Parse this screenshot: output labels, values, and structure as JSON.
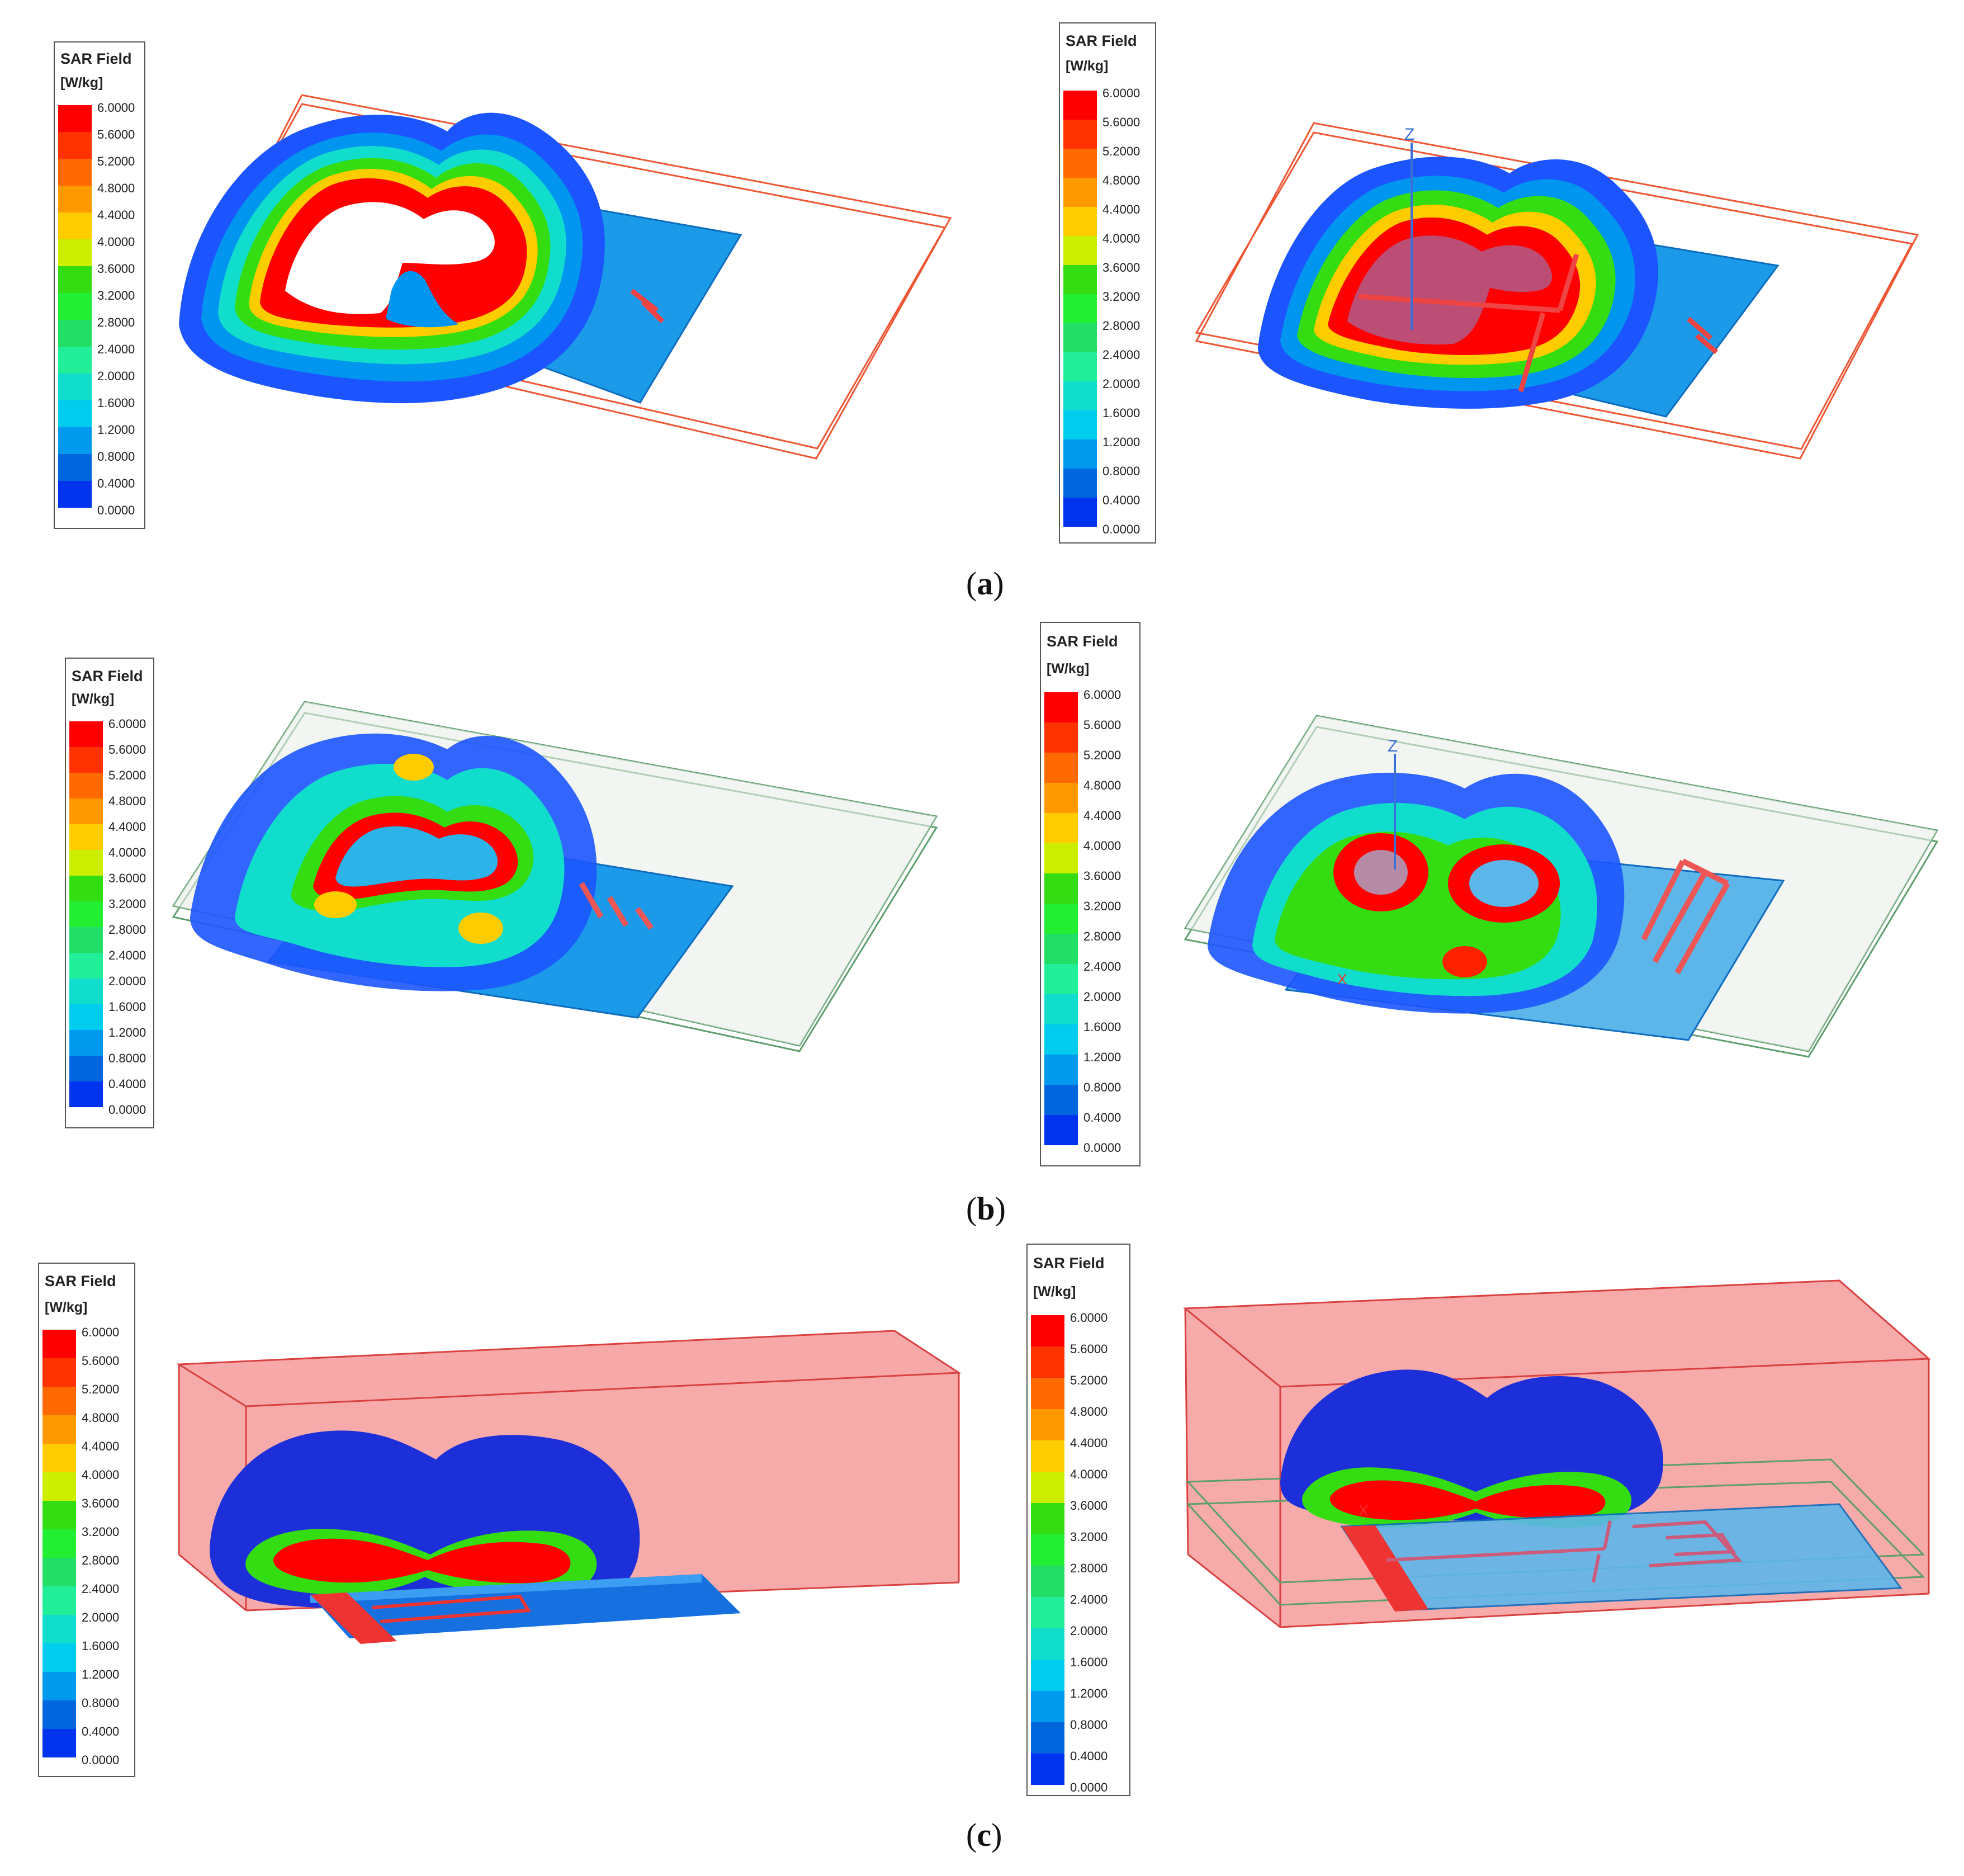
{
  "legend": {
    "title": "SAR Field",
    "unit": "[W/kg]",
    "ticks": [
      "6.0000",
      "5.6000",
      "5.2000",
      "4.8000",
      "4.4000",
      "4.0000",
      "3.6000",
      "3.2000",
      "2.8000",
      "2.4000",
      "2.0000",
      "1.6000",
      "1.2000",
      "0.8000",
      "0.4000",
      "0.0000"
    ],
    "colors": [
      "#ff0000",
      "#ff3300",
      "#ff6a00",
      "#ff9900",
      "#ffcc00",
      "#ccee00",
      "#33dd11",
      "#22ee33",
      "#22dd66",
      "#22ee99",
      "#11ddcc",
      "#00ccee",
      "#0099ee",
      "#0066dd",
      "#0033ee",
      "#0000ff"
    ]
  },
  "panels": {
    "a": {
      "caption_open": "(",
      "caption_letter": "a",
      "caption_close": ")"
    },
    "b": {
      "caption_open": "(",
      "caption_letter": "b",
      "caption_close": ")"
    },
    "c": {
      "caption_open": "(",
      "caption_letter": "c",
      "caption_close": ")"
    }
  },
  "axis_labels": {
    "z": "Z",
    "x": "X"
  },
  "colors": {
    "box_orange": "#ee5533",
    "box_green": "#5d9e6d",
    "substrate_blue": "#1a9ae8",
    "phantom_red": "#f48e8e",
    "feed_red": "#ee3333"
  }
}
